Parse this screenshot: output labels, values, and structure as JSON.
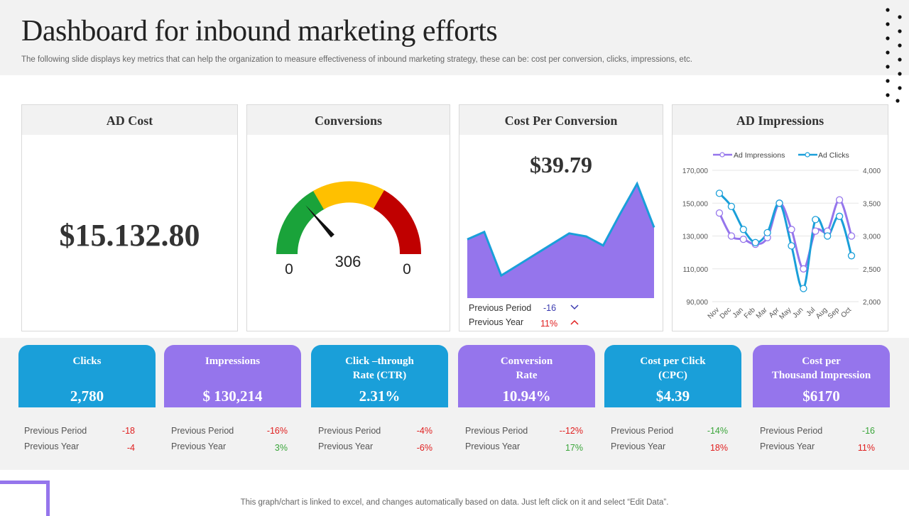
{
  "header": {
    "title": "Dashboard for inbound marketing efforts",
    "subtitle": "The following slide displays key metrics that can help the organization to measure effectiveness of inbound marketing strategy, these can be: cost per conversion, clicks, impressions, etc."
  },
  "colors": {
    "blue": "#1a9fd9",
    "purple": "#9575ec",
    "green_gauge": "#1aa33a",
    "yellow_gauge": "#ffc000",
    "red_gauge": "#c00000",
    "negative": "#e01e1e",
    "positive": "#3aa53a"
  },
  "ad_cost": {
    "title": "AD Cost",
    "value": "$15.132.80"
  },
  "conversions": {
    "title": "Conversions",
    "value": "306",
    "min_label": "0",
    "max_label": "0",
    "needle_fraction": 0.27
  },
  "cost_per_conversion": {
    "title": "Cost Per Conversion",
    "value": "$39.79",
    "previous_period_label": "Previous Period",
    "previous_period_value": "-16",
    "previous_year_label": "Previous Year",
    "previous_year_value": "11%",
    "previous_period_icon": "chevron-down-icon",
    "previous_year_icon": "chevron-up-icon"
  },
  "ad_impressions": {
    "title": "AD Impressions"
  },
  "chart_data": [
    {
      "type": "area",
      "title": "Cost Per Conversion",
      "values": [
        39,
        44,
        15,
        22,
        29,
        36,
        43,
        41,
        35,
        56,
        76,
        47
      ],
      "ylim": [
        0,
        100
      ],
      "color": "#9575ec"
    },
    {
      "type": "line",
      "title": "",
      "categories": [
        "Nov",
        "Dec",
        "Jan",
        "Feb",
        "Mar",
        "Apr",
        "May",
        "Jun",
        "Jul",
        "Aug",
        "Sep",
        "Oct"
      ],
      "y_left_ticks": [
        "170,000",
        "150,000",
        "130,000",
        "110,000",
        "90,000"
      ],
      "y_right_ticks": [
        "4,000",
        "3,500",
        "3,000",
        "2,500",
        "2,000"
      ],
      "ylim_left": [
        90000,
        170000
      ],
      "ylim_right": [
        2000,
        4000
      ],
      "legend_position": "top",
      "series": [
        {
          "name": "Ad Impressions",
          "axis": "left",
          "color": "#9575ec",
          "values": [
            144000,
            130000,
            128000,
            125000,
            129000,
            150000,
            134000,
            110000,
            133000,
            133000,
            152000,
            130000
          ]
        },
        {
          "name": "Ad Clicks",
          "axis": "right",
          "color": "#1a9fd9",
          "values": [
            3650,
            3450,
            3100,
            2900,
            3050,
            3500,
            2850,
            2200,
            3250,
            3000,
            3300,
            2700
          ]
        }
      ]
    }
  ],
  "kpis": [
    {
      "label": "Clicks",
      "value": "2,780",
      "color": "blue",
      "prev_period_label": "Previous Period",
      "prev_period": "-18",
      "prev_period_sign": "neg",
      "prev_year_label": "Previous Year",
      "prev_year": "-4",
      "prev_year_sign": "neg"
    },
    {
      "label": "Impressions",
      "value": "$ 130,214",
      "color": "purple",
      "prev_period_label": "Previous Period",
      "prev_period": "-16%",
      "prev_period_sign": "neg",
      "prev_year_label": "Previous Year",
      "prev_year": "3%",
      "prev_year_sign": "pos"
    },
    {
      "label": "Click –through\nRate (CTR)",
      "value": "2.31%",
      "color": "blue",
      "prev_period_label": "Previous Period",
      "prev_period": "-4%",
      "prev_period_sign": "neg",
      "prev_year_label": "Previous Year",
      "prev_year": "-6%",
      "prev_year_sign": "neg"
    },
    {
      "label": "Conversion\nRate",
      "value": "10.94%",
      "color": "purple",
      "prev_period_label": "Previous Period",
      "prev_period": "--12%",
      "prev_period_sign": "neg",
      "prev_year_label": "Previous Year",
      "prev_year": "17%",
      "prev_year_sign": "pos"
    },
    {
      "label": "Cost per Click\n(CPC)",
      "value": "$4.39",
      "color": "blue",
      "prev_period_label": "Previous Period",
      "prev_period": "-14%",
      "prev_period_sign": "pos",
      "prev_year_label": "Previous Year",
      "prev_year": "18%",
      "prev_year_sign": "neg"
    },
    {
      "label": "Cost per\nThousand Impression",
      "value": "$6170",
      "color": "purple",
      "prev_period_label": "Previous Period",
      "prev_period": "-16",
      "prev_period_sign": "pos",
      "prev_year_label": "Previous Year",
      "prev_year": "11%",
      "prev_year_sign": "neg"
    }
  ],
  "footer": {
    "note": "This graph/chart is linked to excel,  and changes automatically based on data. Just left click on it and select “Edit Data”."
  }
}
